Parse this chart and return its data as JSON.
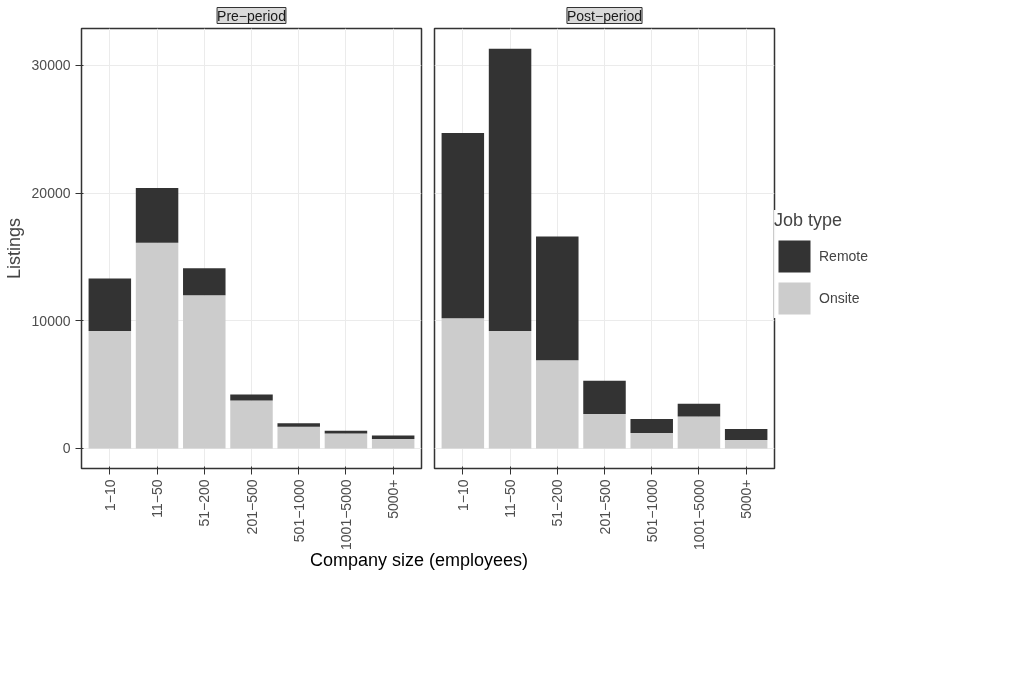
{
  "chart_data": [
    {
      "type": "bar",
      "title": "Pre−period",
      "xlabel": "Company size (employees)",
      "ylabel": "Listings",
      "stacked": true,
      "categories": [
        "1−10",
        "11−50",
        "51−200",
        "201−500",
        "501−1000",
        "1001−5000",
        "5000+"
      ],
      "ylim": [
        -1570,
        32880
      ],
      "yticks": [
        0,
        10000,
        20000,
        30000
      ],
      "grid": true,
      "series": [
        {
          "color": "#cccccc",
          "values": [
            9200,
            16100,
            12000,
            3750,
            1700,
            1170,
            730
          ]
        },
        {
          "color": "#333333",
          "values": [
            4100,
            4300,
            2100,
            480,
            270,
            220,
            290
          ]
        }
      ]
    },
    {
      "type": "bar",
      "title": "Post−period",
      "stacked": true,
      "categories": [
        "1−10",
        "11−50",
        "51−200",
        "201−500",
        "501−1000",
        "1001−5000",
        "5000+"
      ],
      "ylim": [
        -1570,
        32880
      ],
      "yticks": [
        0,
        10000,
        20000,
        30000
      ],
      "grid": true,
      "tick_labels": "x",
      "legend": "right",
      "legend_title": "Job type",
      "series": [
        {
          "name": "Onsite",
          "color": "#cccccc",
          "values": [
            10200,
            9200,
            6900,
            2700,
            1200,
            2500,
            660
          ]
        },
        {
          "name": "Remote",
          "color": "#333333",
          "values": [
            14500,
            22100,
            9700,
            2600,
            1100,
            1000,
            870
          ]
        }
      ]
    }
  ]
}
